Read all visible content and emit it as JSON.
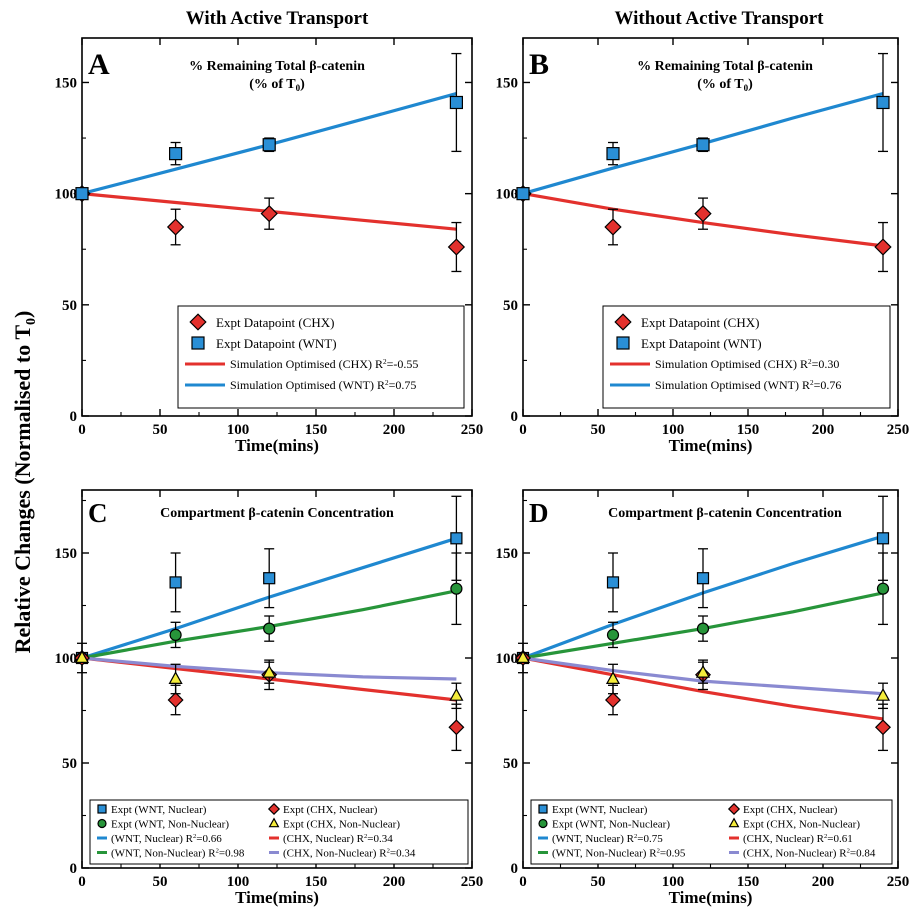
{
  "figure": {
    "ylabel": "Relative Changes (Normalised  to T",
    "ylabel_sub": "0",
    "ylabel_end": ")",
    "colors": {
      "red": "#e3312d",
      "blue": "#1f88d0",
      "green": "#27953a",
      "purple": "#8a8ad1",
      "yellow": "#f4ec3a",
      "blue_marker": "#2a8fd6"
    }
  },
  "chart_data": [
    {
      "panel": "A",
      "type": "scatter",
      "column_title": "With Active Transport",
      "title": "% Remaining Total β-catenin",
      "subtitle": "(% of T",
      "subtitle_sub": "0",
      "subtitle_end": ")",
      "xlabel": "Time(mins)",
      "xlim": [
        0,
        250
      ],
      "ylim": [
        0,
        170
      ],
      "xticks": [
        0,
        50,
        100,
        150,
        200,
        250
      ],
      "yticks": [
        0,
        50,
        100,
        150
      ],
      "legend_position": "bottom-right",
      "points": [
        {
          "name": "Expt Datapoint (CHX)",
          "marker": "diamond",
          "color": "red",
          "x": [
            0,
            60,
            120,
            240
          ],
          "y": [
            100,
            85,
            91,
            76
          ],
          "err": [
            0,
            8,
            7,
            11
          ]
        },
        {
          "name": "Expt Datapoint (WNT)",
          "marker": "square",
          "color": "blue_marker",
          "x": [
            0,
            60,
            120,
            240
          ],
          "y": [
            100,
            118,
            122,
            141
          ],
          "err": [
            0,
            5,
            3,
            22
          ]
        }
      ],
      "lines": [
        {
          "name": "Simulation Optimised (CHX) R",
          "r2": "=-0.55",
          "color": "red",
          "x": [
            0,
            60,
            120,
            180,
            240
          ],
          "y": [
            100,
            96,
            92,
            88,
            84
          ]
        },
        {
          "name": "Simulation Optimised (WNT) R",
          "r2": "=0.75",
          "color": "blue",
          "x": [
            0,
            60,
            120,
            180,
            240
          ],
          "y": [
            100,
            111,
            122,
            133.5,
            145
          ]
        }
      ]
    },
    {
      "panel": "B",
      "type": "scatter",
      "column_title": "Without Active Transport",
      "title": "% Remaining Total β-catenin",
      "subtitle": "(% of T",
      "subtitle_sub": "0",
      "subtitle_end": ")",
      "xlabel": "Time(mins)",
      "xlim": [
        0,
        250
      ],
      "ylim": [
        0,
        170
      ],
      "xticks": [
        0,
        50,
        100,
        150,
        200,
        250
      ],
      "yticks": [
        0,
        50,
        100,
        150
      ],
      "legend_position": "bottom-right",
      "points": [
        {
          "name": "Expt Datapoint (CHX)",
          "marker": "diamond",
          "color": "red",
          "x": [
            0,
            60,
            120,
            240
          ],
          "y": [
            100,
            85,
            91,
            76
          ],
          "err": [
            0,
            8,
            7,
            11
          ]
        },
        {
          "name": "Expt Datapoint (WNT)",
          "marker": "square",
          "color": "blue_marker",
          "x": [
            0,
            60,
            120,
            240
          ],
          "y": [
            100,
            118,
            122,
            141
          ],
          "err": [
            0,
            5,
            3,
            22
          ]
        }
      ],
      "lines": [
        {
          "name": "Simulation Optimised (CHX) R",
          "r2": "=0.30",
          "color": "red",
          "x": [
            0,
            60,
            120,
            180,
            240
          ],
          "y": [
            100,
            93,
            87,
            81.5,
            76.5
          ]
        },
        {
          "name": "Simulation Optimised (WNT) R",
          "r2": "=0.76",
          "color": "blue",
          "x": [
            0,
            60,
            120,
            180,
            240
          ],
          "y": [
            100,
            111.5,
            122.5,
            134,
            145
          ]
        }
      ]
    },
    {
      "panel": "C",
      "type": "scatter",
      "title": "Compartment β-catenin Concentration",
      "xlabel": "Time(mins)",
      "xlim": [
        0,
        250
      ],
      "ylim": [
        0,
        180
      ],
      "xticks": [
        0,
        50,
        100,
        150,
        200,
        250
      ],
      "yticks": [
        0,
        50,
        100,
        150
      ],
      "legend_position": "bottom",
      "points": [
        {
          "name": "Expt (WNT, Nuclear)",
          "marker": "square",
          "color": "blue_marker",
          "x": [
            0,
            60,
            120,
            240
          ],
          "y": [
            100,
            136,
            138,
            157
          ],
          "err": [
            0,
            14,
            14,
            20
          ]
        },
        {
          "name": "Expt (WNT, Non-Nuclear)",
          "marker": "circle",
          "color": "green",
          "x": [
            0,
            60,
            120,
            240
          ],
          "y": [
            100,
            111,
            114,
            133
          ],
          "err": [
            7,
            6,
            6,
            17
          ]
        },
        {
          "name": "Expt (CHX, Nuclear)",
          "marker": "diamond",
          "color": "red",
          "x": [
            0,
            60,
            120,
            240
          ],
          "y": [
            100,
            80,
            92,
            67
          ],
          "err": [
            0,
            7,
            7,
            11
          ]
        },
        {
          "name": "Expt (CHX, Non-Nuclear)",
          "marker": "triangle",
          "color": "yellow",
          "x": [
            0,
            60,
            120,
            240
          ],
          "y": [
            100,
            90,
            93,
            82
          ],
          "err": [
            0,
            7,
            5,
            6
          ]
        }
      ],
      "lines": [
        {
          "name": "(WNT, Nuclear) R",
          "r2": "=0.66",
          "color": "blue",
          "x": [
            0,
            60,
            120,
            180,
            240
          ],
          "y": [
            100,
            114,
            129,
            143,
            157
          ]
        },
        {
          "name": "(CHX, Nuclear) R",
          "r2": "=0.34",
          "color": "red",
          "x": [
            0,
            60,
            120,
            180,
            240
          ],
          "y": [
            100,
            95,
            90,
            85,
            80
          ]
        },
        {
          "name": "(WNT, Non-Nuclear) R",
          "r2": "=0.98",
          "color": "green",
          "x": [
            0,
            60,
            120,
            180,
            240
          ],
          "y": [
            100,
            108,
            115,
            123,
            132
          ]
        },
        {
          "name": "(CHX, Non-Nuclear) R",
          "r2": "=0.34",
          "color": "purple",
          "x": [
            0,
            60,
            120,
            180,
            240
          ],
          "y": [
            100,
            96,
            93,
            91,
            90
          ]
        }
      ]
    },
    {
      "panel": "D",
      "type": "scatter",
      "title": "Compartment β-catenin Concentration",
      "xlabel": "Time(mins)",
      "xlim": [
        0,
        250
      ],
      "ylim": [
        0,
        180
      ],
      "xticks": [
        0,
        50,
        100,
        150,
        200,
        250
      ],
      "yticks": [
        0,
        50,
        100,
        150
      ],
      "legend_position": "bottom",
      "points": [
        {
          "name": "Expt (WNT, Nuclear)",
          "marker": "square",
          "color": "blue_marker",
          "x": [
            0,
            60,
            120,
            240
          ],
          "y": [
            100,
            136,
            138,
            157
          ],
          "err": [
            0,
            14,
            14,
            20
          ]
        },
        {
          "name": "Expt (WNT, Non-Nuclear)",
          "marker": "circle",
          "color": "green",
          "x": [
            0,
            60,
            120,
            240
          ],
          "y": [
            100,
            111,
            114,
            133
          ],
          "err": [
            7,
            6,
            6,
            17
          ]
        },
        {
          "name": "Expt (CHX, Nuclear)",
          "marker": "diamond",
          "color": "red",
          "x": [
            0,
            60,
            120,
            240
          ],
          "y": [
            100,
            80,
            92,
            67
          ],
          "err": [
            0,
            7,
            7,
            11
          ]
        },
        {
          "name": "Expt (CHX, Non-Nuclear)",
          "marker": "triangle",
          "color": "yellow",
          "x": [
            0,
            60,
            120,
            240
          ],
          "y": [
            100,
            90,
            93,
            82
          ],
          "err": [
            0,
            7,
            5,
            6
          ]
        }
      ],
      "lines": [
        {
          "name": "(WNT, Nuclear) R",
          "r2": "=0.75",
          "color": "blue",
          "x": [
            0,
            60,
            120,
            180,
            240
          ],
          "y": [
            100,
            116,
            131,
            145,
            158
          ]
        },
        {
          "name": "(CHX, Nuclear) R",
          "r2": "=0.61",
          "color": "red",
          "x": [
            0,
            60,
            120,
            180,
            240
          ],
          "y": [
            100,
            92,
            84,
            77,
            71
          ]
        },
        {
          "name": "(WNT, Non-Nuclear) R",
          "r2": "=0.95",
          "color": "green",
          "x": [
            0,
            60,
            120,
            180,
            240
          ],
          "y": [
            100,
            107,
            114,
            122,
            131
          ]
        },
        {
          "name": "(CHX, Non-Nuclear) R",
          "r2": "=0.84",
          "color": "purple",
          "x": [
            0,
            60,
            120,
            180,
            240
          ],
          "y": [
            100,
            94,
            89,
            86,
            83
          ]
        }
      ]
    }
  ]
}
